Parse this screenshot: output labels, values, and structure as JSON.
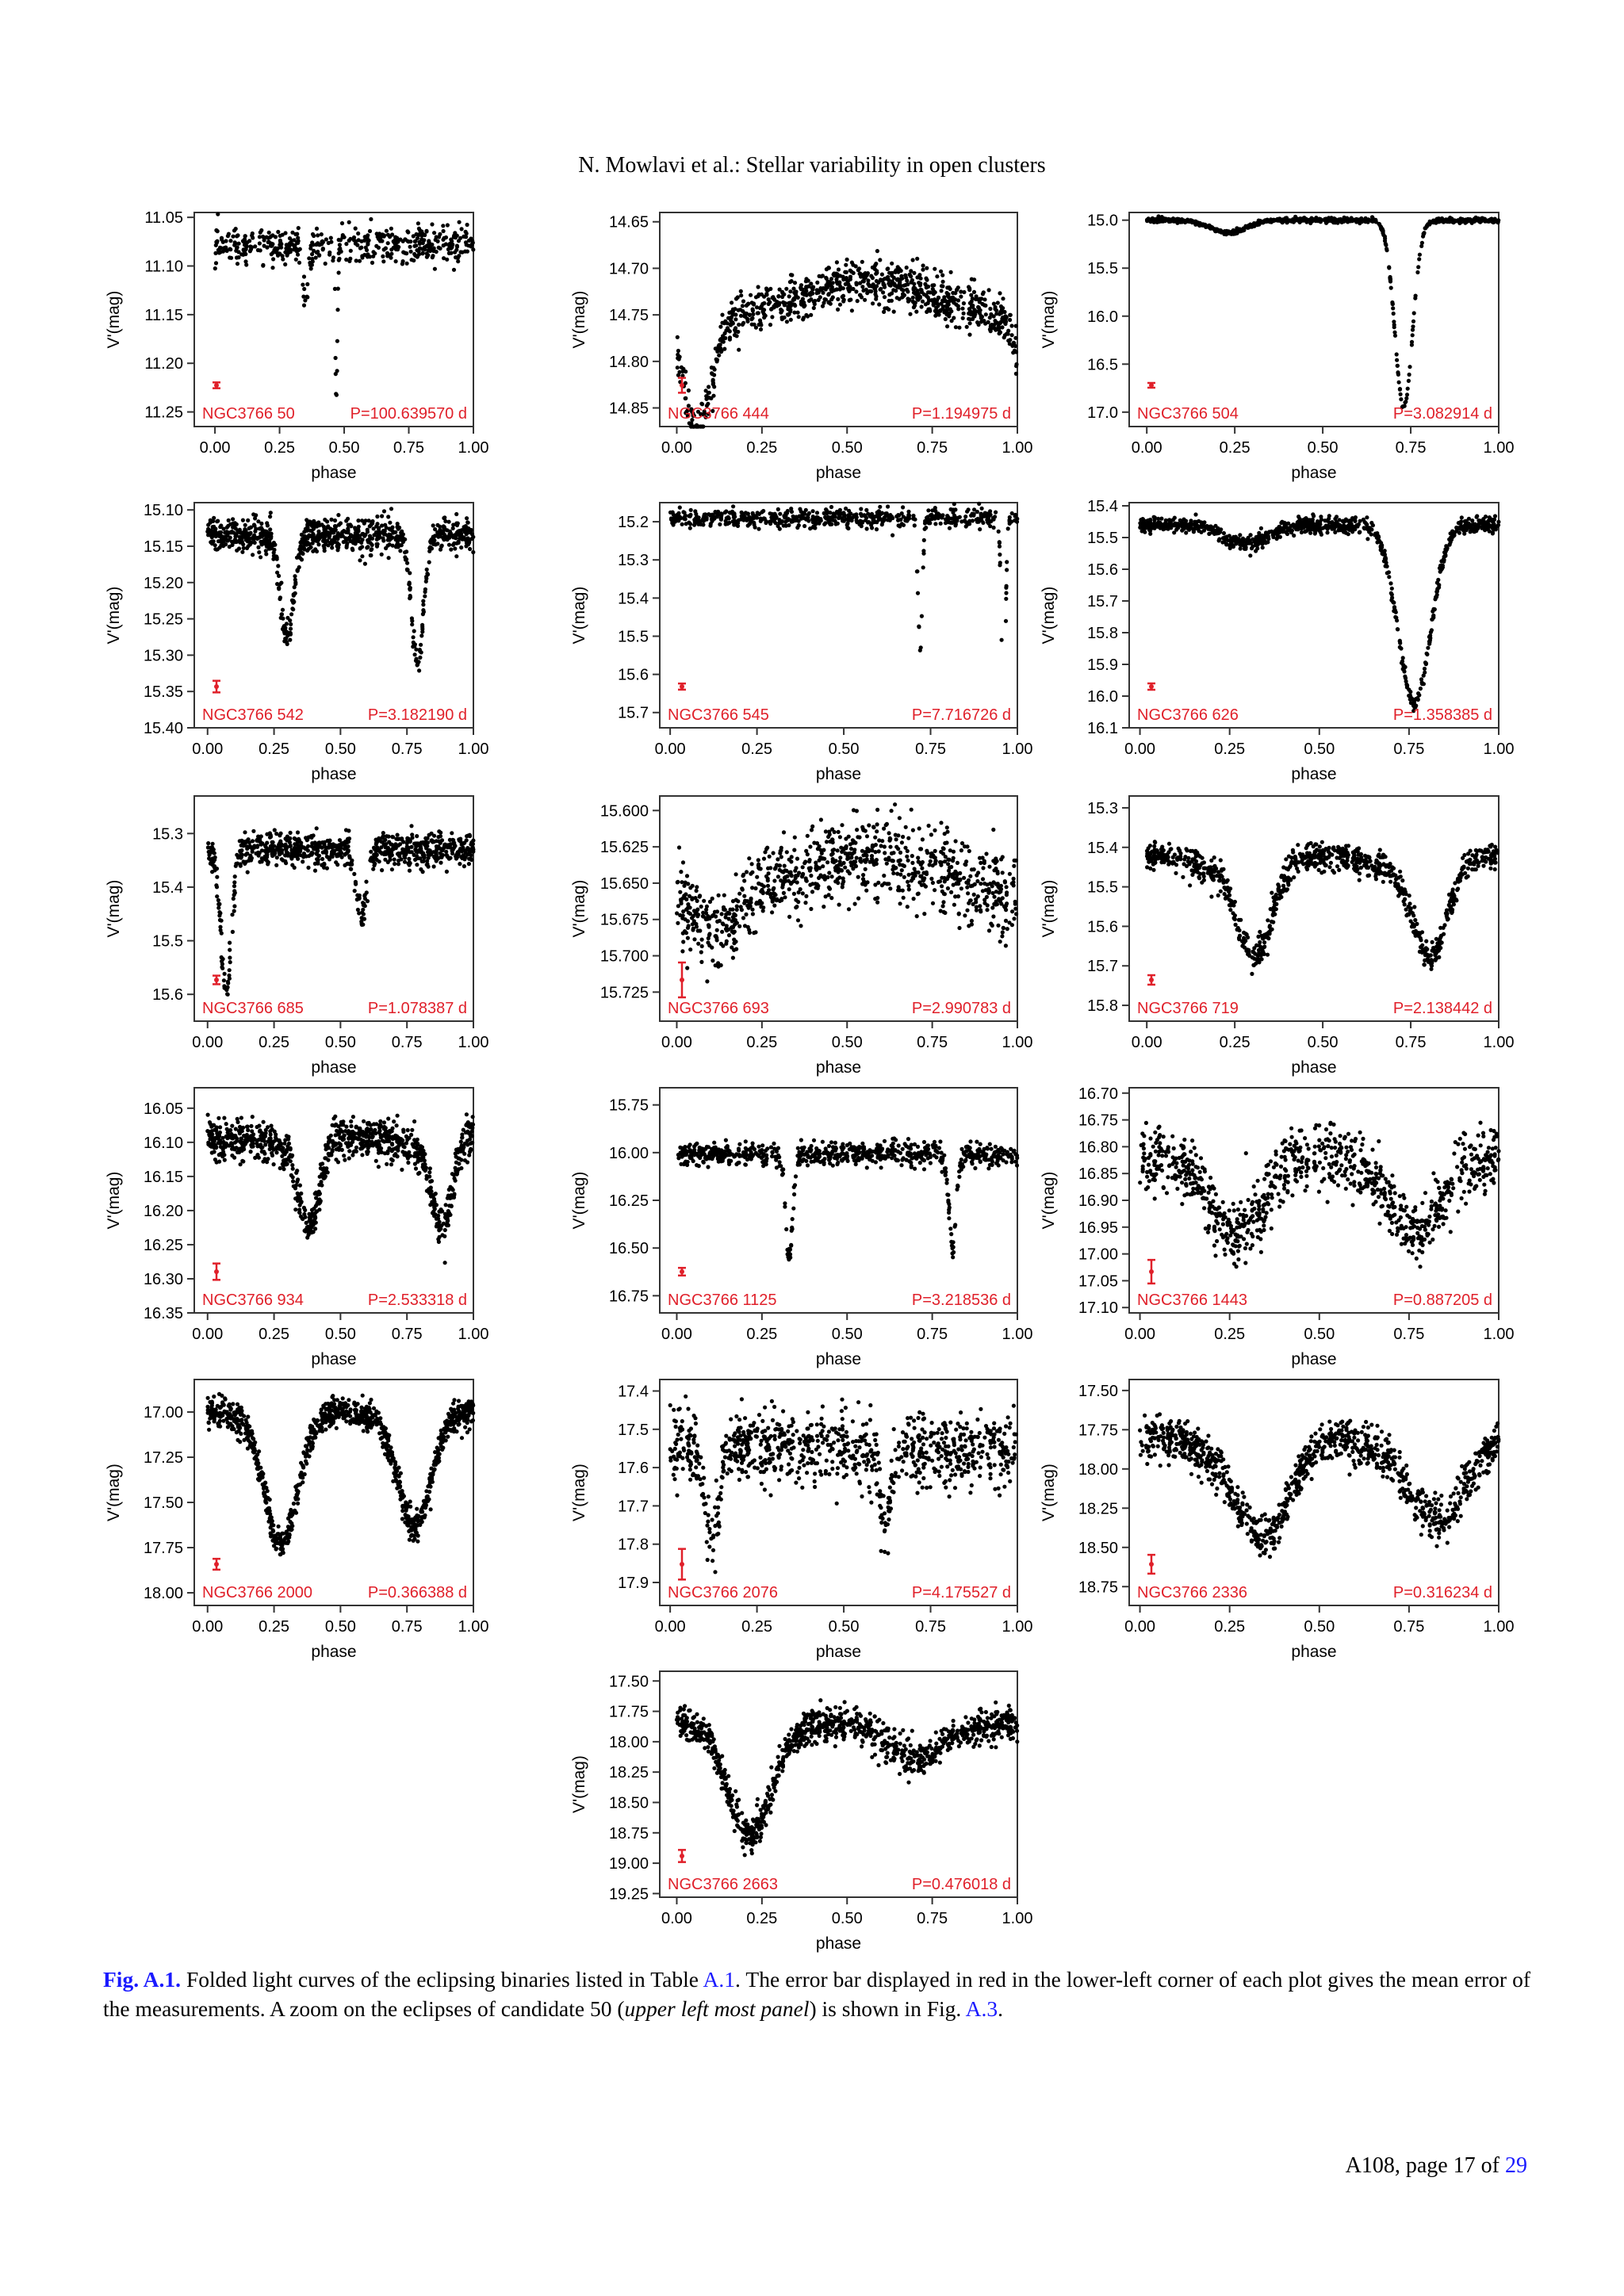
{
  "header": {
    "running_head": "N. Mowlavi et al.: Stellar variability in open clusters"
  },
  "caption": {
    "label": "Fig. A.1.",
    "text1": " Folded light curves of the eclipsing binaries listed in Table ",
    "table_ref": "A.1",
    "text2": ". The error bar displayed in red in the lower-left corner of each plot gives the mean error of the measurements. A zoom on the eclipses of candidate 50 (",
    "emph": "upper left most panel",
    "text3": ") is shown in Fig. ",
    "fig_ref": "A.3",
    "text4": "."
  },
  "footer": {
    "page_text": "A108, page 17 of ",
    "total_pages": "29"
  },
  "colors": {
    "points": "#000000",
    "annotation": "#e0202a",
    "frame": "#333333"
  },
  "chart_data": [
    {
      "type": "scatter",
      "star": "NGC3766 50",
      "period": "P=100.639570 d",
      "xlabel": "phase",
      "ylabel": "V'(mag)",
      "xlim": [
        -0.08,
        1.0
      ],
      "ylim": [
        11.265,
        11.045
      ],
      "yticks": [
        "11.05",
        "11.10",
        "11.15",
        "11.20",
        "11.25"
      ],
      "xticks": [
        "0.00",
        "0.25",
        "0.50",
        "0.75",
        "1.00"
      ],
      "base": 11.078,
      "noise": 0.009,
      "eclipses": [
        [
          0.35,
          0.012,
          0.06
        ],
        [
          0.47,
          0.004,
          0.16
        ]
      ],
      "err": 0.003,
      "density": 480
    },
    {
      "type": "scatter",
      "star": "NGC3766 444",
      "period": "P=1.194975 d",
      "xlabel": "phase",
      "ylabel": "V'(mag)",
      "xlim": [
        -0.05,
        1.0
      ],
      "ylim": [
        14.87,
        14.64
      ],
      "yticks": [
        "14.65",
        "14.70",
        "14.75",
        "14.80",
        "14.85"
      ],
      "xticks": [
        "0.00",
        "0.25",
        "0.50",
        "0.75",
        "1.00"
      ],
      "base": 14.735,
      "noise": 0.012,
      "wave": [
        0.02,
        0.0
      ],
      "eclipses": [
        [
          0.06,
          0.04,
          0.12
        ]
      ],
      "err": 0.008,
      "density": 900
    },
    {
      "type": "scatter",
      "star": "NGC3766 504",
      "period": "P=3.082914 d",
      "xlabel": "phase",
      "ylabel": "V'(mag)",
      "xlim": [
        -0.05,
        1.0
      ],
      "ylim": [
        17.15,
        14.92
      ],
      "yticks": [
        "15.0",
        "15.5",
        "16.0",
        "16.5",
        "17.0"
      ],
      "xticks": [
        "0.00",
        "0.25",
        "0.50",
        "0.75",
        "1.00"
      ],
      "base": 15.0,
      "noise": 0.012,
      "eclipses": [
        [
          0.73,
          0.025,
          1.95
        ],
        [
          0.23,
          0.05,
          0.13
        ]
      ],
      "err": 0.01,
      "density": 700
    },
    {
      "type": "scatter",
      "star": "NGC3766 542",
      "period": "P=3.182190 d",
      "xlabel": "phase",
      "ylabel": "V'(mag)",
      "xlim": [
        -0.05,
        1.0
      ],
      "ylim": [
        15.4,
        15.09
      ],
      "yticks": [
        "15.10",
        "15.15",
        "15.20",
        "15.25",
        "15.30",
        "15.35",
        "15.40"
      ],
      "xticks": [
        "0.00",
        "0.25",
        "0.50",
        "0.75",
        "1.00"
      ],
      "base": 15.135,
      "noise": 0.011,
      "eclipses": [
        [
          0.3,
          0.025,
          0.14
        ],
        [
          0.79,
          0.022,
          0.18
        ]
      ],
      "err": 0.008,
      "density": 850
    },
    {
      "type": "scatter",
      "star": "NGC3766 545",
      "period": "P=7.716726 d",
      "xlabel": "phase",
      "ylabel": "V'(mag)",
      "xlim": [
        -0.03,
        1.0
      ],
      "ylim": [
        15.74,
        15.15
      ],
      "yticks": [
        "15.2",
        "15.3",
        "15.4",
        "15.5",
        "15.6",
        "15.7"
      ],
      "xticks": [
        "0.00",
        "0.25",
        "0.50",
        "0.75",
        "1.00"
      ],
      "base": 15.19,
      "noise": 0.012,
      "eclipses": [
        [
          0.72,
          0.006,
          0.35
        ],
        [
          0.96,
          0.006,
          0.48
        ]
      ],
      "err": 0.008,
      "density": 600
    },
    {
      "type": "scatter",
      "star": "NGC3766 626",
      "period": "P=1.358385 d",
      "xlabel": "phase",
      "ylabel": "V'(mag)",
      "xlim": [
        -0.03,
        1.0
      ],
      "ylim": [
        16.1,
        15.39
      ],
      "yticks": [
        "15.4",
        "15.5",
        "15.6",
        "15.7",
        "15.8",
        "15.9",
        "16.0",
        "16.1"
      ],
      "xticks": [
        "0.00",
        "0.25",
        "0.50",
        "0.75",
        "1.00"
      ],
      "base": 15.46,
      "noise": 0.012,
      "eclipses": [
        [
          0.765,
          0.045,
          0.56
        ],
        [
          0.29,
          0.06,
          0.06
        ]
      ],
      "err": 0.01,
      "density": 900
    },
    {
      "type": "scatter",
      "star": "NGC3766 685",
      "period": "P=1.078387 d",
      "xlabel": "phase",
      "ylabel": "V'(mag)",
      "xlim": [
        -0.05,
        1.0
      ],
      "ylim": [
        15.65,
        15.23
      ],
      "yticks": [
        "15.3",
        "15.4",
        "15.5",
        "15.6"
      ],
      "xticks": [
        "0.00",
        "0.25",
        "0.50",
        "0.75",
        "1.00"
      ],
      "base": 15.33,
      "noise": 0.015,
      "eclipses": [
        [
          0.07,
          0.02,
          0.26
        ],
        [
          0.58,
          0.02,
          0.12
        ]
      ],
      "err": 0.008,
      "density": 800
    },
    {
      "type": "scatter",
      "star": "NGC3766 693",
      "period": "P=2.990783 d",
      "xlabel": "phase",
      "ylabel": "V'(mag)",
      "xlim": [
        -0.05,
        1.0
      ],
      "ylim": [
        15.745,
        15.59
      ],
      "yticks": [
        "15.600",
        "15.625",
        "15.650",
        "15.675",
        "15.700",
        "15.725"
      ],
      "xticks": [
        "0.00",
        "0.25",
        "0.50",
        "0.75",
        "1.00"
      ],
      "base": 15.645,
      "noise": 0.014,
      "wave": [
        0.012,
        0.0
      ],
      "eclipses": [
        [
          0.12,
          0.06,
          0.03
        ]
      ],
      "err": 0.012,
      "density": 900
    },
    {
      "type": "scatter",
      "star": "NGC3766 719",
      "period": "P=2.138442 d",
      "xlabel": "phase",
      "ylabel": "V'(mag)",
      "xlim": [
        -0.05,
        1.0
      ],
      "ylim": [
        15.84,
        15.27
      ],
      "yticks": [
        "15.3",
        "15.4",
        "15.5",
        "15.6",
        "15.7",
        "15.8"
      ],
      "xticks": [
        "0.00",
        "0.25",
        "0.50",
        "0.75",
        "1.00"
      ],
      "base": 15.42,
      "noise": 0.018,
      "wave": [
        0.0,
        0.06
      ],
      "eclipses": [
        [
          0.31,
          0.045,
          0.22
        ],
        [
          0.81,
          0.045,
          0.22
        ]
      ],
      "err": 0.012,
      "density": 900
    },
    {
      "type": "scatter",
      "star": "NGC3766 934",
      "period": "P=2.533318 d",
      "xlabel": "phase",
      "ylabel": "V'(mag)",
      "xlim": [
        -0.05,
        1.0
      ],
      "ylim": [
        16.35,
        16.02
      ],
      "yticks": [
        "16.05",
        "16.10",
        "16.15",
        "16.20",
        "16.25",
        "16.30",
        "16.35"
      ],
      "xticks": [
        "0.00",
        "0.25",
        "0.50",
        "0.75",
        "1.00"
      ],
      "base": 16.09,
      "noise": 0.014,
      "wave": [
        0.0,
        0.015
      ],
      "eclipses": [
        [
          0.38,
          0.04,
          0.13
        ],
        [
          0.88,
          0.04,
          0.13
        ]
      ],
      "err": 0.012,
      "density": 900
    },
    {
      "type": "scatter",
      "star": "NGC3766 1125",
      "period": "P=3.218536 d",
      "xlabel": "phase",
      "ylabel": "V'(mag)",
      "xlim": [
        -0.05,
        1.0
      ],
      "ylim": [
        16.84,
        15.66
      ],
      "yticks": [
        "15.75",
        "16.00",
        "16.25",
        "16.50",
        "16.75"
      ],
      "xticks": [
        "0.00",
        "0.25",
        "0.50",
        "0.75",
        "1.00"
      ],
      "base": 16.01,
      "noise": 0.03,
      "eclipses": [
        [
          0.33,
          0.01,
          0.55
        ],
        [
          0.81,
          0.01,
          0.5
        ]
      ],
      "err": 0.02,
      "density": 700
    },
    {
      "type": "scatter",
      "star": "NGC3766 1443",
      "period": "P=0.887205 d",
      "xlabel": "phase",
      "ylabel": "V'(mag)",
      "xlim": [
        -0.03,
        1.0
      ],
      "ylim": [
        17.11,
        16.69
      ],
      "yticks": [
        "16.70",
        "16.75",
        "16.80",
        "16.85",
        "16.90",
        "16.95",
        "17.00",
        "17.05",
        "17.10"
      ],
      "xticks": [
        "0.00",
        "0.25",
        "0.50",
        "0.75",
        "1.00"
      ],
      "base": 16.82,
      "noise": 0.03,
      "wave": [
        0.0,
        0.02
      ],
      "eclipses": [
        [
          0.27,
          0.07,
          0.13
        ],
        [
          0.77,
          0.07,
          0.12
        ]
      ],
      "err": 0.022,
      "density": 900
    },
    {
      "type": "scatter",
      "star": "NGC3766 2000",
      "period": "P=0.366388 d",
      "xlabel": "phase",
      "ylabel": "V'(mag)",
      "xlim": [
        -0.05,
        1.0
      ],
      "ylim": [
        18.07,
        16.82
      ],
      "yticks": [
        "17.00",
        "17.25",
        "17.50",
        "17.75",
        "18.00"
      ],
      "xticks": [
        "0.00",
        "0.25",
        "0.50",
        "0.75",
        "1.00"
      ],
      "base": 17.0,
      "noise": 0.04,
      "wave": [
        0.0,
        0.1
      ],
      "eclipses": [
        [
          0.28,
          0.06,
          0.65
        ],
        [
          0.78,
          0.06,
          0.55
        ]
      ],
      "err": 0.03,
      "density": 1000
    },
    {
      "type": "scatter",
      "star": "NGC3766 2076",
      "period": "P=4.175527 d",
      "xlabel": "phase",
      "ylabel": "V'(mag)",
      "xlim": [
        -0.03,
        1.0
      ],
      "ylim": [
        17.96,
        17.37
      ],
      "yticks": [
        "17.4",
        "17.5",
        "17.6",
        "17.7",
        "17.8",
        "17.9"
      ],
      "xticks": [
        "0.00",
        "0.25",
        "0.50",
        "0.75",
        "1.00"
      ],
      "base": 17.55,
      "noise": 0.045,
      "eclipses": [
        [
          0.12,
          0.02,
          0.25
        ],
        [
          0.62,
          0.015,
          0.2
        ]
      ],
      "err": 0.04,
      "density": 900
    },
    {
      "type": "scatter",
      "star": "NGC3766 2336",
      "period": "P=0.316234 d",
      "xlabel": "phase",
      "ylabel": "V'(mag)",
      "xlim": [
        -0.03,
        1.0
      ],
      "ylim": [
        18.87,
        17.43
      ],
      "yticks": [
        "17.50",
        "17.75",
        "18.00",
        "18.25",
        "18.50",
        "18.75"
      ],
      "xticks": [
        "0.00",
        "0.25",
        "0.50",
        "0.75",
        "1.00"
      ],
      "base": 17.8,
      "noise": 0.07,
      "wave": [
        0.0,
        0.15
      ],
      "eclipses": [
        [
          0.35,
          0.07,
          0.55
        ],
        [
          0.84,
          0.07,
          0.45
        ]
      ],
      "err": 0.06,
      "density": 1000
    },
    {
      "type": "scatter",
      "star": "NGC3766 2663",
      "period": "P=0.476018 d",
      "xlabel": "phase",
      "ylabel": "V'(mag)",
      "xlim": [
        -0.05,
        1.0
      ],
      "ylim": [
        19.28,
        17.42
      ],
      "yticks": [
        "17.50",
        "17.75",
        "18.00",
        "18.25",
        "18.50",
        "18.75",
        "19.00",
        "19.25"
      ],
      "xticks": [
        "0.00",
        "0.25",
        "0.50",
        "0.75",
        "1.00"
      ],
      "base": 17.85,
      "noise": 0.07,
      "wave": [
        0.0,
        0.15
      ],
      "eclipses": [
        [
          0.21,
          0.06,
          0.8
        ],
        [
          0.68,
          0.06,
          0.2
        ]
      ],
      "err": 0.05,
      "density": 1000
    }
  ]
}
